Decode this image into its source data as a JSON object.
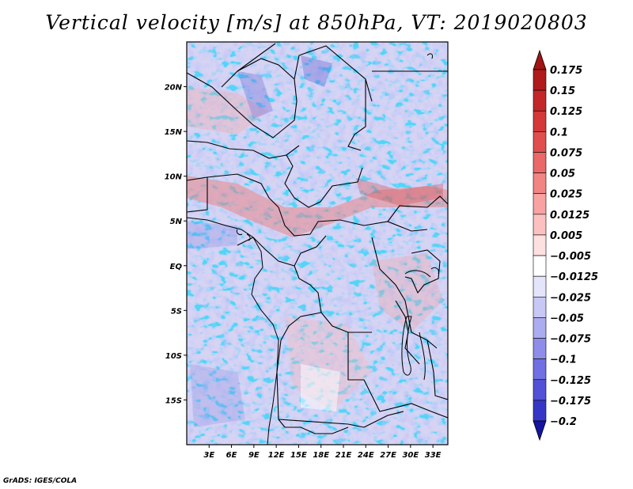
{
  "title": "Vertical velocity [m/s] at 850hPa, VT: 2019020803",
  "footer": "GrADS: IGES/COLA",
  "map": {
    "lon_range": [
      0,
      35
    ],
    "lat_range": [
      -20,
      25
    ],
    "lat_ticks": [
      {
        "value": 20,
        "label": "20N"
      },
      {
        "value": 15,
        "label": "15N"
      },
      {
        "value": 10,
        "label": "10N"
      },
      {
        "value": 5,
        "label": "5N"
      },
      {
        "value": 0,
        "label": "EQ"
      },
      {
        "value": -5,
        "label": "5S"
      },
      {
        "value": -10,
        "label": "10S"
      },
      {
        "value": -15,
        "label": "15S"
      }
    ],
    "lon_ticks": [
      {
        "value": 3,
        "label": "3E"
      },
      {
        "value": 6,
        "label": "6E"
      },
      {
        "value": 9,
        "label": "9E"
      },
      {
        "value": 12,
        "label": "12E"
      },
      {
        "value": 15,
        "label": "15E"
      },
      {
        "value": 18,
        "label": "18E"
      },
      {
        "value": 21,
        "label": "21E"
      },
      {
        "value": 24,
        "label": "24E"
      },
      {
        "value": 27,
        "label": "27E"
      },
      {
        "value": 30,
        "label": "30E"
      },
      {
        "value": 33,
        "label": "33E"
      }
    ]
  },
  "colorbar": {
    "levels": [
      {
        "label": "0.175",
        "color": "#b01a1a"
      },
      {
        "label": "0.15",
        "color": "#c42727"
      },
      {
        "label": "0.125",
        "color": "#d43838"
      },
      {
        "label": "0.1",
        "color": "#e04e4e"
      },
      {
        "label": "0.075",
        "color": "#ea6868"
      },
      {
        "label": "0.05",
        "color": "#f28484"
      },
      {
        "label": "0.025",
        "color": "#f8a2a2"
      },
      {
        "label": "0.0125",
        "color": "#fcc0c0"
      },
      {
        "label": "0.005",
        "color": "#fde0e0"
      },
      {
        "label": "-0.005",
        "color": "#ffffff"
      },
      {
        "label": "-0.0125",
        "color": "#e4e4fb"
      },
      {
        "label": "-0.025",
        "color": "#c8c8f5"
      },
      {
        "label": "-0.05",
        "color": "#acacf0"
      },
      {
        "label": "-0.075",
        "color": "#8e8eea"
      },
      {
        "label": "-0.1",
        "color": "#7070e2"
      },
      {
        "label": "-0.125",
        "color": "#5252d6"
      },
      {
        "label": "-0.175",
        "color": "#3636c6"
      },
      {
        "label": "-0.2",
        "color": "#2222b4"
      }
    ],
    "over_color": "#a01414",
    "under_color": "#1414a0"
  }
}
